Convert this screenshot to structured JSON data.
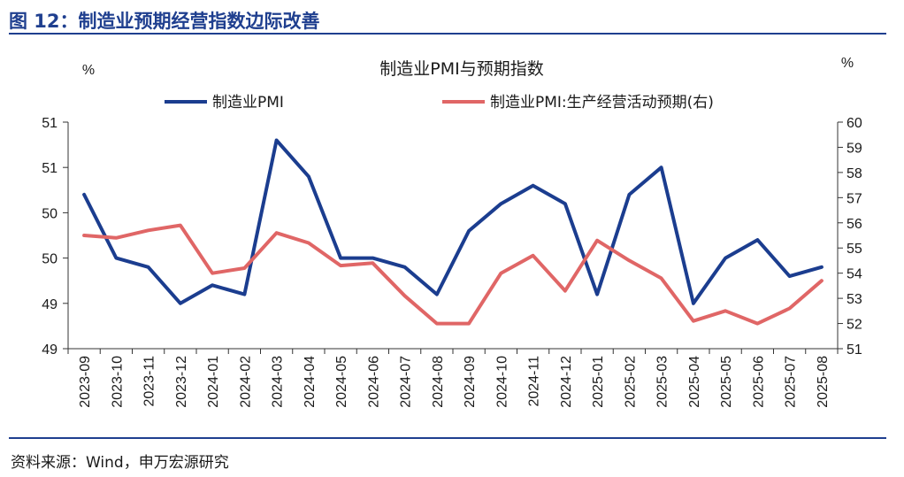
{
  "header": {
    "figure_title": "图 12：制造业预期经营指数边际改善"
  },
  "footer": {
    "source": "资料来源：Wind，申万宏源研究"
  },
  "colors": {
    "brand": "#1f3f8f",
    "series_1": "#1b3d8f",
    "series_2": "#e06666"
  },
  "chart_data": {
    "type": "line",
    "title": "制造业PMI与预期指数",
    "y_left_unit": "%",
    "y_right_unit": "%",
    "legend_position": "top",
    "grid": false,
    "x": [
      "2023-09",
      "2023-10",
      "2023-11",
      "2023-12",
      "2024-01",
      "2024-02",
      "2024-03",
      "2024-04",
      "2024-05",
      "2024-06",
      "2024-07",
      "2024-08",
      "2024-09",
      "2024-10",
      "2024-11",
      "2024-12",
      "2025-01",
      "2025-02",
      "2025-03",
      "2025-04",
      "2025-05",
      "2025-06",
      "2025-07",
      "2025-08"
    ],
    "y_left": {
      "ylim": [
        48.5,
        51.0
      ],
      "ticks": [
        48.5,
        49.0,
        49.5,
        50.0,
        50.5,
        51.0
      ],
      "tick_labels": [
        "49",
        "49",
        "50",
        "50",
        "51",
        "51"
      ]
    },
    "y_right": {
      "ylim": [
        51,
        60
      ],
      "ticks": [
        51,
        52,
        53,
        54,
        55,
        56,
        57,
        58,
        59,
        60
      ],
      "tick_labels": [
        "51",
        "52",
        "53",
        "54",
        "55",
        "56",
        "57",
        "58",
        "59",
        "60"
      ]
    },
    "series": [
      {
        "name": "制造业PMI",
        "axis": "left",
        "values": [
          50.2,
          49.5,
          49.4,
          49.0,
          49.2,
          49.1,
          50.8,
          50.4,
          49.5,
          49.5,
          49.4,
          49.1,
          49.8,
          50.1,
          50.3,
          50.1,
          49.1,
          50.2,
          50.5,
          49.0,
          49.5,
          49.7,
          49.3,
          49.4
        ]
      },
      {
        "name": "制造业PMI:生产经营活动预期(右)",
        "axis": "right",
        "values": [
          55.5,
          55.4,
          55.7,
          55.9,
          54.0,
          54.2,
          55.6,
          55.2,
          54.3,
          54.4,
          53.1,
          52.0,
          52.0,
          54.0,
          54.7,
          53.3,
          55.3,
          54.5,
          53.8,
          52.1,
          52.5,
          52.0,
          52.6,
          53.7
        ]
      }
    ]
  }
}
